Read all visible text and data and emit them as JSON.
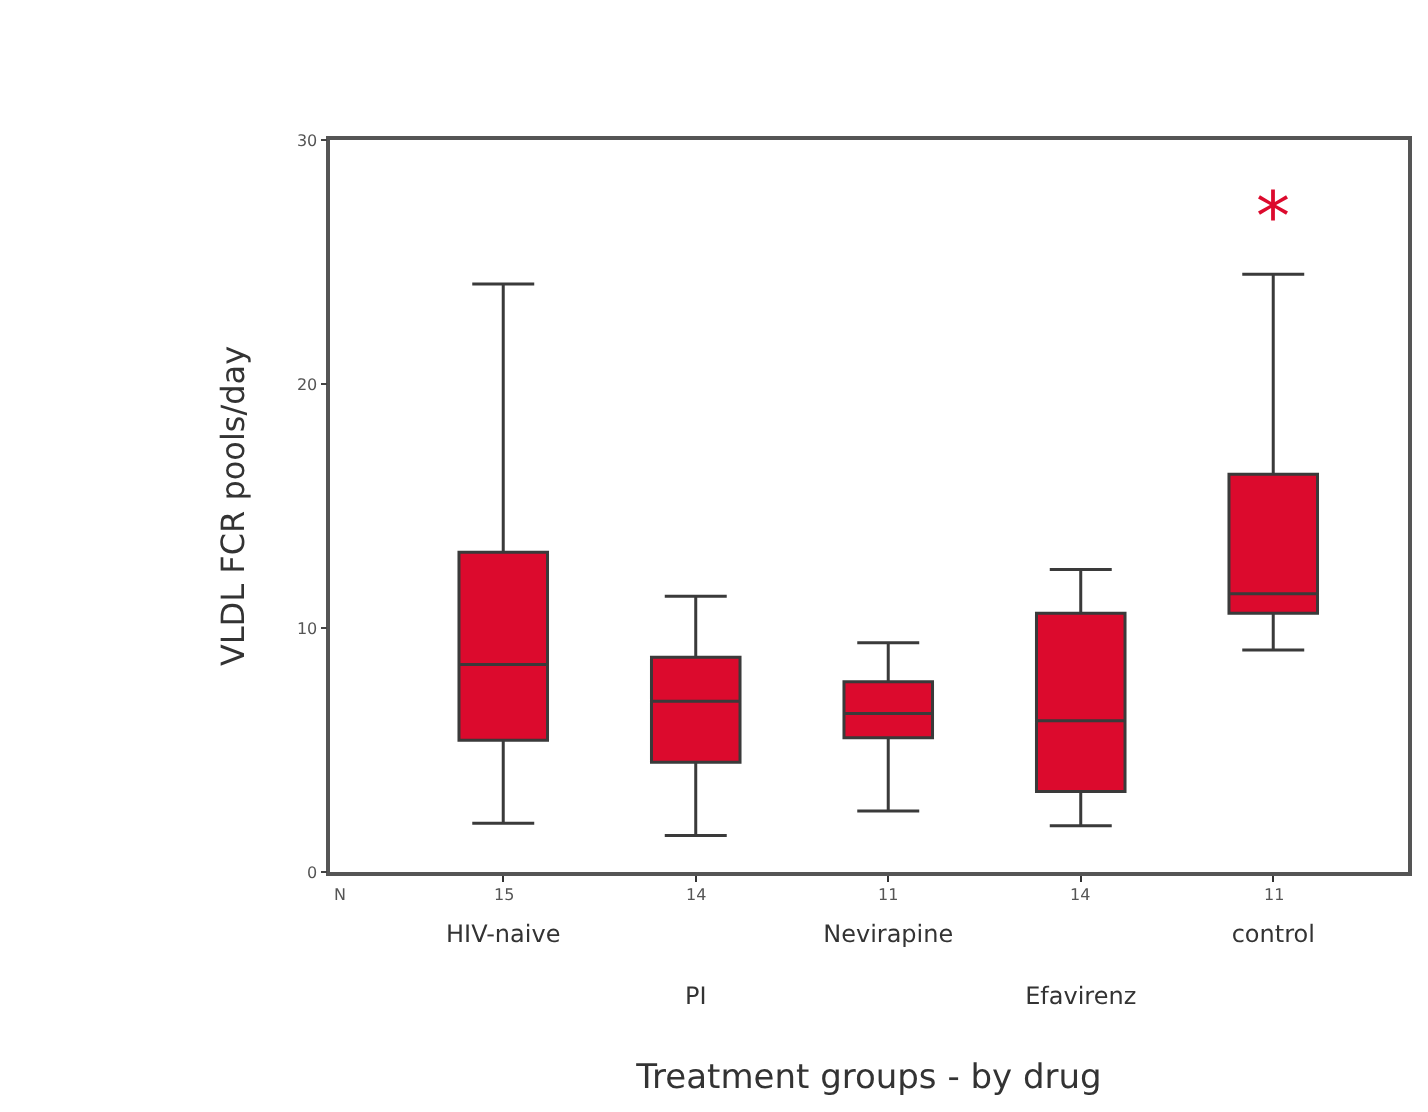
{
  "chart_data": {
    "type": "box",
    "xlabel": "Treatment groups - by drug",
    "ylabel": "VLDL FCR pools/day",
    "categories": [
      "HIV-naive",
      "PI",
      "Nevirapine",
      "Efavirenz",
      "control"
    ],
    "color": "#dc0a2d",
    "boxes": [
      {
        "low": 2.0,
        "q1": 5.4,
        "median": 8.5,
        "q3": 13.1,
        "high": 24.1
      },
      {
        "low": 1.5,
        "q1": 4.5,
        "median": 7.0,
        "q3": 8.8,
        "high": 11.3
      },
      {
        "low": 2.5,
        "q1": 5.5,
        "median": 6.5,
        "q3": 7.8,
        "high": 9.4
      },
      {
        "low": 1.9,
        "q1": 3.3,
        "median": 6.2,
        "q3": 10.6,
        "high": 12.4
      },
      {
        "low": 9.1,
        "q1": 10.6,
        "median": 11.4,
        "q3": 16.3,
        "high": 24.5
      }
    ],
    "ylim": [
      0,
      30
    ],
    "yticks": [
      0,
      10,
      20,
      30
    ],
    "annotations": [
      "*",
      "N",
      "15",
      "14",
      "11",
      "14",
      "11"
    ]
  }
}
